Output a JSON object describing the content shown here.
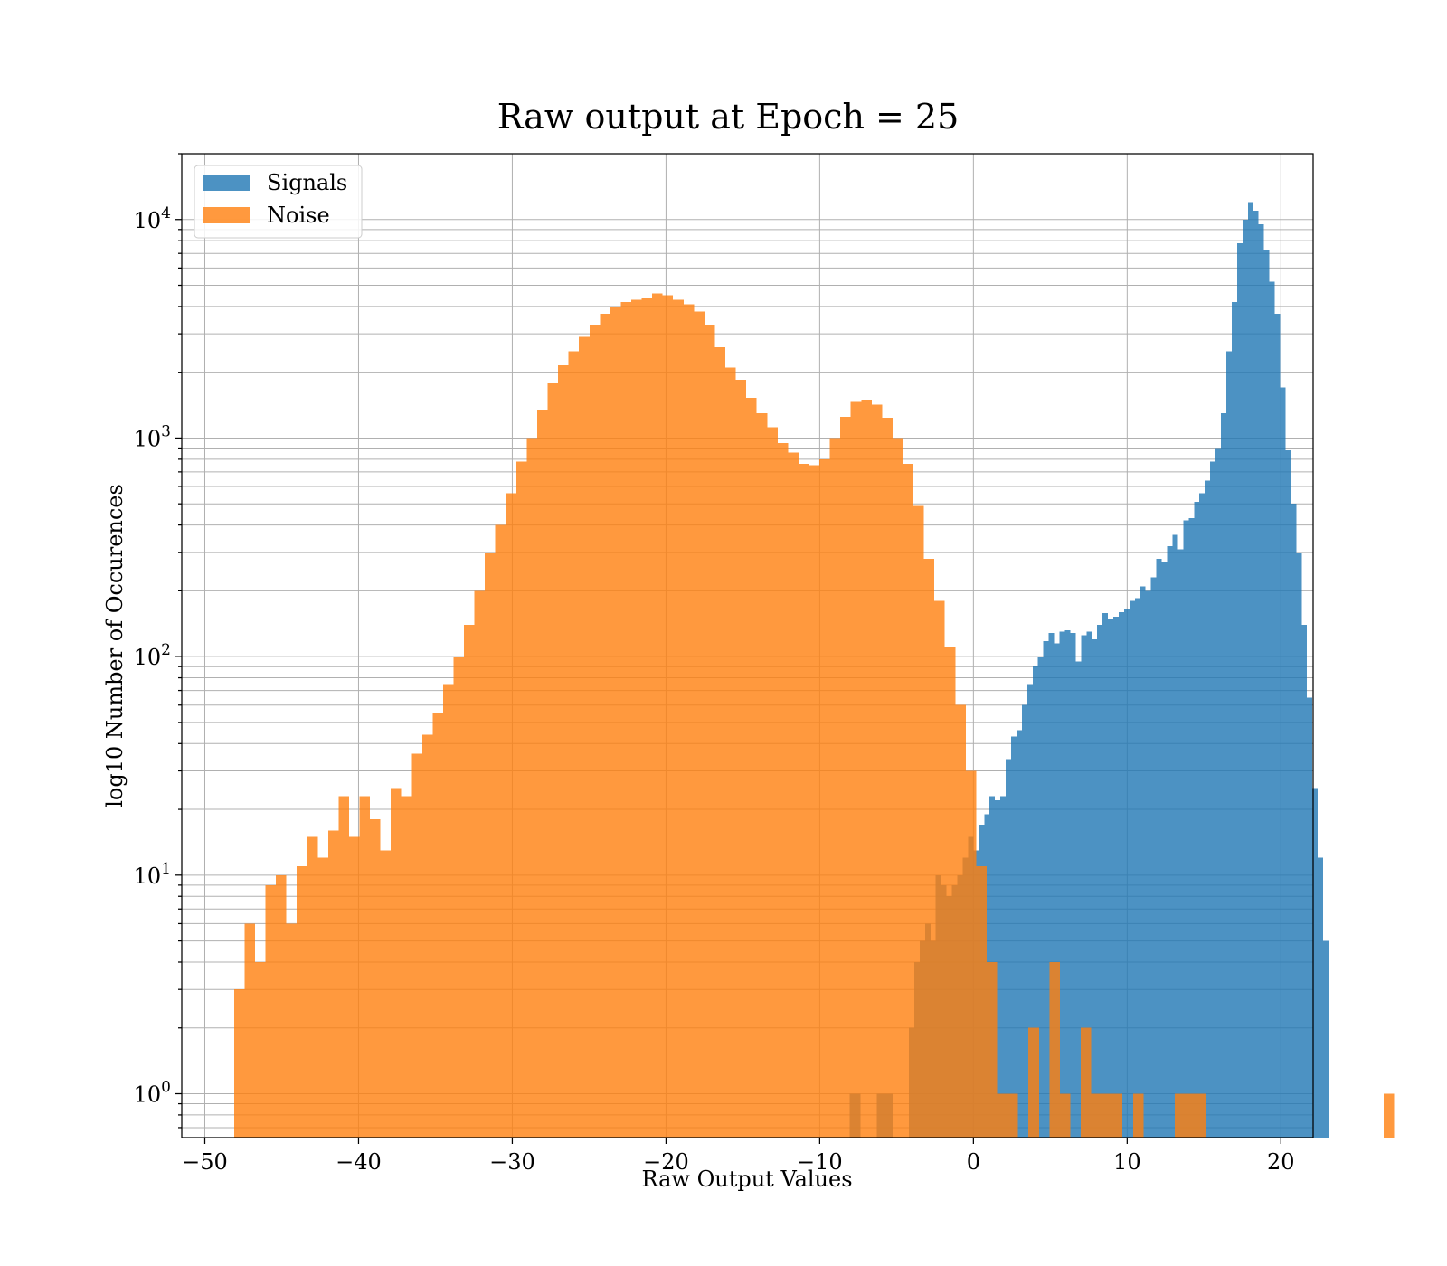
{
  "chart_data": {
    "type": "bar",
    "title": "Raw output at Epoch = 25",
    "xlabel": "Raw Output Values",
    "ylabel": "log10 Number of Occurences",
    "xlim": [
      -51.5,
      22.1
    ],
    "ylim": [
      0.63,
      20000
    ],
    "yscale": "log",
    "grid": "on (major and minor)",
    "legend_placement": "top-left",
    "x_ticks": [
      -50,
      -40,
      -30,
      -20,
      -10,
      0,
      10,
      20
    ],
    "x_tick_labels": [
      "−50",
      "−40",
      "−30",
      "−20",
      "−10",
      "0",
      "10",
      "20"
    ],
    "y_ticks": [
      {
        "value": 1,
        "base": "10",
        "exp": "0"
      },
      {
        "value": 10,
        "base": "10",
        "exp": "1"
      },
      {
        "value": 100,
        "base": "10",
        "exp": "2"
      },
      {
        "value": 1000,
        "base": "10",
        "exp": "3"
      },
      {
        "value": 10000,
        "base": "10",
        "exp": "4"
      }
    ],
    "series": [
      {
        "name": "Signals",
        "color": "#1f77b4",
        "opacity": 0.8,
        "bin_start": -8.05,
        "bin_width": 0.35,
        "values": [
          1,
          1,
          0,
          0,
          0,
          1,
          1,
          1,
          0,
          0,
          0,
          2,
          4,
          5,
          6,
          5,
          10,
          9,
          8,
          9,
          10,
          12,
          15,
          13,
          17,
          19,
          23,
          22,
          23,
          34,
          43,
          46,
          60,
          75,
          90,
          100,
          118,
          128,
          115,
          130,
          132,
          128,
          95,
          125,
          130,
          120,
          140,
          158,
          148,
          152,
          160,
          165,
          180,
          185,
          210,
          200,
          230,
          280,
          270,
          320,
          360,
          310,
          420,
          430,
          510,
          560,
          640,
          780,
          900,
          1300,
          2500,
          4200,
          7800,
          10000,
          12000,
          11000,
          9500,
          7200,
          5200,
          3700,
          1700,
          880,
          500,
          300,
          140,
          65,
          25,
          12,
          5
        ]
      },
      {
        "name": "Noise",
        "color": "#ff7f0e",
        "opacity": 0.8,
        "bin_start": -48.1,
        "bin_width": 0.68,
        "values": [
          3,
          6,
          4,
          9,
          10,
          6,
          11,
          15,
          12,
          16,
          23,
          15,
          23,
          18,
          13,
          25,
          23,
          36,
          44,
          55,
          75,
          100,
          140,
          200,
          300,
          400,
          560,
          780,
          1000,
          1350,
          1780,
          2150,
          2500,
          2900,
          3300,
          3700,
          4000,
          4200,
          4300,
          4400,
          4600,
          4500,
          4300,
          4100,
          3800,
          3300,
          2600,
          2100,
          1850,
          1530,
          1300,
          1120,
          950,
          860,
          760,
          750,
          800,
          1000,
          1250,
          1480,
          1500,
          1420,
          1240,
          1000,
          760,
          490,
          280,
          180,
          110,
          60,
          30,
          11,
          4,
          1,
          1,
          0,
          2,
          0,
          4,
          1,
          0,
          2,
          1,
          1,
          1,
          0,
          1,
          0,
          0,
          0,
          1,
          1,
          1,
          0,
          0,
          0,
          0,
          0,
          0,
          0,
          0,
          0,
          0,
          0,
          0,
          0,
          0,
          0,
          0,
          0,
          1
        ]
      }
    ]
  }
}
